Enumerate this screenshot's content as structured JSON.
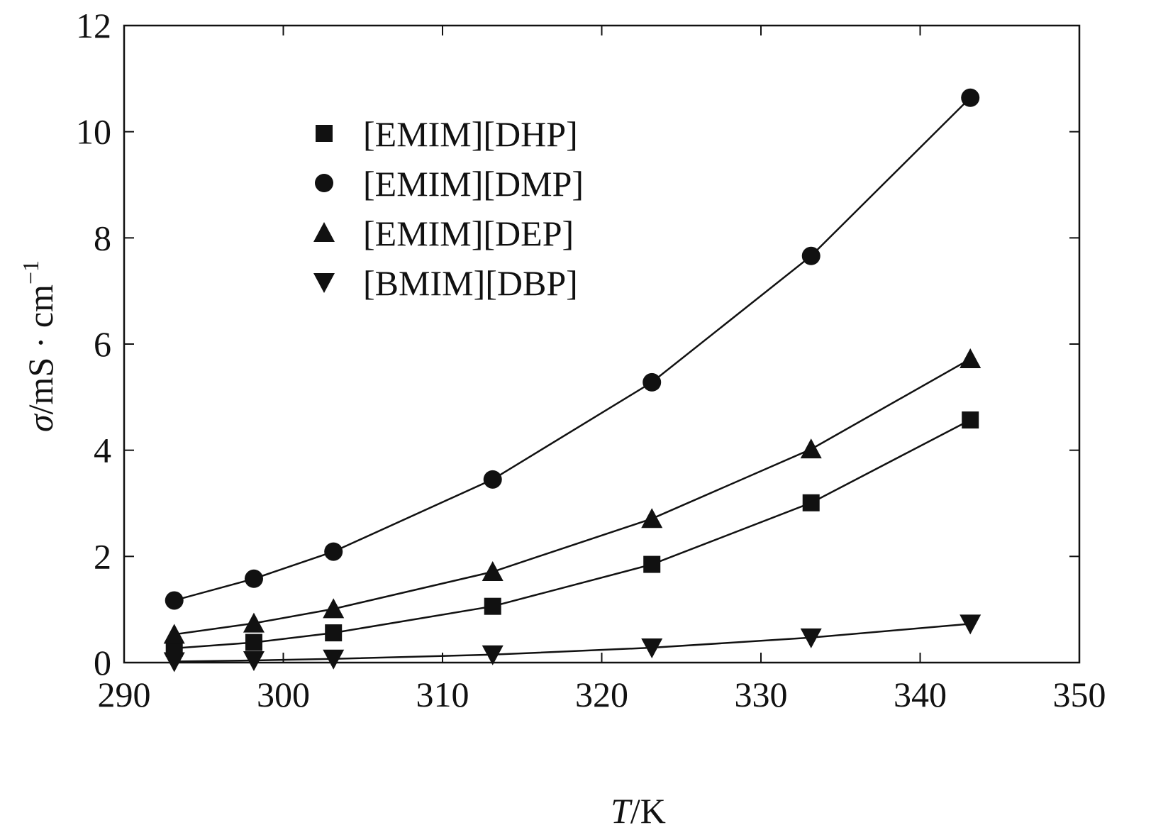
{
  "chart_data": {
    "type": "line",
    "xlabel": {
      "italic": "T",
      "rest": "/K"
    },
    "ylabel": {
      "italic": "σ",
      "rest": "/mS · cm",
      "sup": "−1"
    },
    "xlim": [
      290,
      350
    ],
    "ylim": [
      0,
      12
    ],
    "xticks": [
      290,
      300,
      310,
      320,
      330,
      340,
      350
    ],
    "yticks": [
      0,
      2,
      4,
      6,
      8,
      10,
      12
    ],
    "grid": false,
    "legend": "upper-left",
    "x": [
      293.15,
      298.15,
      303.15,
      313.15,
      323.15,
      333.15,
      343.15
    ],
    "series": [
      {
        "name": "[EMIM][DHP]",
        "marker": "square",
        "values": [
          0.27,
          0.38,
          0.56,
          1.06,
          1.85,
          3.01,
          4.57
        ]
      },
      {
        "name": "[EMIM][DMP]",
        "marker": "circle",
        "values": [
          1.17,
          1.58,
          2.09,
          3.45,
          5.28,
          7.66,
          10.64
        ]
      },
      {
        "name": "[EMIM][DEP]",
        "marker": "triangle-up",
        "values": [
          0.53,
          0.74,
          1.01,
          1.71,
          2.71,
          4.02,
          5.72
        ]
      },
      {
        "name": "[BMIM][DBP]",
        "marker": "triangle-down",
        "values": [
          0.02,
          0.04,
          0.07,
          0.15,
          0.28,
          0.47,
          0.73
        ]
      }
    ],
    "colors": {
      "ink": "#111111",
      "background": "#ffffff"
    }
  }
}
